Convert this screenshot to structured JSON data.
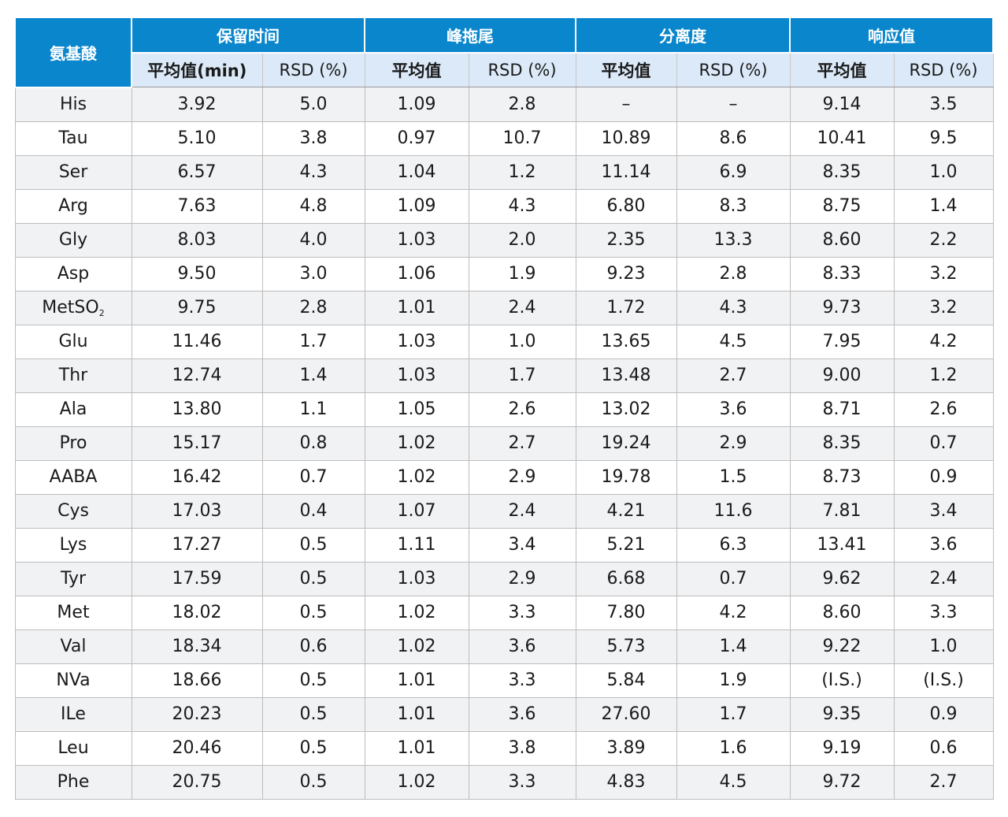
{
  "table": {
    "corner_label": "氨基酸",
    "groups": [
      "保留时间",
      "峰拖尾",
      "分离度",
      "响应值"
    ],
    "subheaders": [
      "平均值(min)",
      "RSD (%)",
      "平均值",
      "RSD (%)",
      "平均值",
      "RSD (%)",
      "平均值",
      "RSD (%)"
    ],
    "rows": [
      {
        "name": "His",
        "sub": "",
        "cells": [
          "3.92",
          "5.0",
          "1.09",
          "2.8",
          "–",
          "–",
          "9.14",
          "3.5"
        ]
      },
      {
        "name": "Tau",
        "sub": "",
        "cells": [
          "5.10",
          "3.8",
          "0.97",
          "10.7",
          "10.89",
          "8.6",
          "10.41",
          "9.5"
        ]
      },
      {
        "name": "Ser",
        "sub": "",
        "cells": [
          "6.57",
          "4.3",
          "1.04",
          "1.2",
          "11.14",
          "6.9",
          "8.35",
          "1.0"
        ]
      },
      {
        "name": "Arg",
        "sub": "",
        "cells": [
          "7.63",
          "4.8",
          "1.09",
          "4.3",
          "6.80",
          "8.3",
          "8.75",
          "1.4"
        ]
      },
      {
        "name": "Gly",
        "sub": "",
        "cells": [
          "8.03",
          "4.0",
          "1.03",
          "2.0",
          "2.35",
          "13.3",
          "8.60",
          "2.2"
        ]
      },
      {
        "name": "Asp",
        "sub": "",
        "cells": [
          "9.50",
          "3.0",
          "1.06",
          "1.9",
          "9.23",
          "2.8",
          "8.33",
          "3.2"
        ]
      },
      {
        "name": "MetSO",
        "sub": "2",
        "cells": [
          "9.75",
          "2.8",
          "1.01",
          "2.4",
          "1.72",
          "4.3",
          "9.73",
          "3.2"
        ]
      },
      {
        "name": "Glu",
        "sub": "",
        "cells": [
          "11.46",
          "1.7",
          "1.03",
          "1.0",
          "13.65",
          "4.5",
          "7.95",
          "4.2"
        ]
      },
      {
        "name": "Thr",
        "sub": "",
        "cells": [
          "12.74",
          "1.4",
          "1.03",
          "1.7",
          "13.48",
          "2.7",
          "9.00",
          "1.2"
        ]
      },
      {
        "name": "Ala",
        "sub": "",
        "cells": [
          "13.80",
          "1.1",
          "1.05",
          "2.6",
          "13.02",
          "3.6",
          "8.71",
          "2.6"
        ]
      },
      {
        "name": "Pro",
        "sub": "",
        "cells": [
          "15.17",
          "0.8",
          "1.02",
          "2.7",
          "19.24",
          "2.9",
          "8.35",
          "0.7"
        ]
      },
      {
        "name": "AABA",
        "sub": "",
        "cells": [
          "16.42",
          "0.7",
          "1.02",
          "2.9",
          "19.78",
          "1.5",
          "8.73",
          "0.9"
        ]
      },
      {
        "name": "Cys",
        "sub": "",
        "cells": [
          "17.03",
          "0.4",
          "1.07",
          "2.4",
          "4.21",
          "11.6",
          "7.81",
          "3.4"
        ]
      },
      {
        "name": "Lys",
        "sub": "",
        "cells": [
          "17.27",
          "0.5",
          "1.11",
          "3.4",
          "5.21",
          "6.3",
          "13.41",
          "3.6"
        ]
      },
      {
        "name": "Tyr",
        "sub": "",
        "cells": [
          "17.59",
          "0.5",
          "1.03",
          "2.9",
          "6.68",
          "0.7",
          "9.62",
          "2.4"
        ]
      },
      {
        "name": "Met",
        "sub": "",
        "cells": [
          "18.02",
          "0.5",
          "1.02",
          "3.3",
          "7.80",
          "4.2",
          "8.60",
          "3.3"
        ]
      },
      {
        "name": "Val",
        "sub": "",
        "cells": [
          "18.34",
          "0.6",
          "1.02",
          "3.6",
          "5.73",
          "1.4",
          "9.22",
          "1.0"
        ]
      },
      {
        "name": "NVa",
        "sub": "",
        "cells": [
          "18.66",
          "0.5",
          "1.01",
          "3.3",
          "5.84",
          "1.9",
          "(I.S.)",
          "(I.S.)"
        ]
      },
      {
        "name": "ILe",
        "sub": "",
        "cells": [
          "20.23",
          "0.5",
          "1.01",
          "3.6",
          "27.60",
          "1.7",
          "9.35",
          "0.9"
        ]
      },
      {
        "name": "Leu",
        "sub": "",
        "cells": [
          "20.46",
          "0.5",
          "1.01",
          "3.8",
          "3.89",
          "1.6",
          "9.19",
          "0.6"
        ]
      },
      {
        "name": "Phe",
        "sub": "",
        "cells": [
          "20.75",
          "0.5",
          "1.02",
          "3.3",
          "4.83",
          "4.5",
          "9.72",
          "2.7"
        ]
      }
    ]
  },
  "colors": {
    "header_blue": "#0a86cc",
    "subheader_bg": "#dbe9f8",
    "row_alt_bg": "#f1f2f4",
    "grid_line": "#bdbdbd"
  }
}
